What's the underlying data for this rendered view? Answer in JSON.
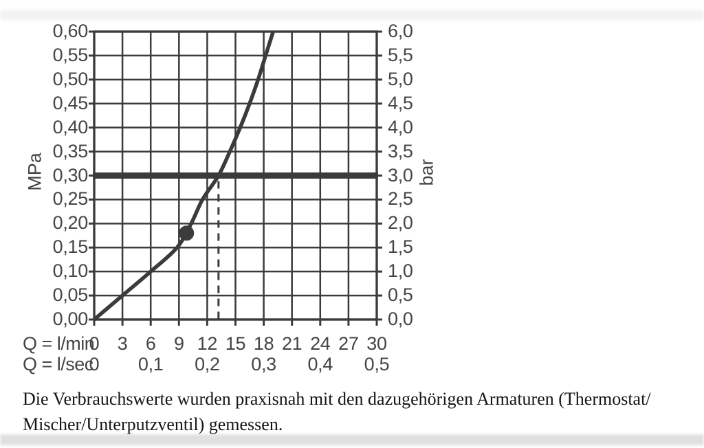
{
  "caption": {
    "line1": "Die Verbrauchswerte wurden praxisnah mit den dazugehörigen Armaturen (Thermostat/",
    "line2": "Mischer/Unterputzventil) gemessen."
  },
  "chart_data": {
    "type": "line",
    "title": "",
    "grid": true,
    "ink_color": "#3b3b3b",
    "label_color": "#454545",
    "x_axis": {
      "xlim_lmin": [
        0,
        30
      ],
      "grid_step_lmin": 3,
      "rows": [
        {
          "label": "Q = l/min",
          "ticks": [
            {
              "q": 0,
              "label": "0"
            },
            {
              "q": 3,
              "label": "3"
            },
            {
              "q": 6,
              "label": "6"
            },
            {
              "q": 9,
              "label": "9"
            },
            {
              "q": 12,
              "label": "12"
            },
            {
              "q": 15,
              "label": "15"
            },
            {
              "q": 18,
              "label": "18"
            },
            {
              "q": 21,
              "label": "21"
            },
            {
              "q": 24,
              "label": "24"
            },
            {
              "q": 27,
              "label": "27"
            },
            {
              "q": 30,
              "label": "30"
            }
          ]
        },
        {
          "label": "Q = l/sec",
          "ticks": [
            {
              "q": 0,
              "label": "0"
            },
            {
              "q": 6,
              "label": "0,1"
            },
            {
              "q": 12,
              "label": "0,2"
            },
            {
              "q": 18,
              "label": "0,3"
            },
            {
              "q": 24,
              "label": "0,4"
            },
            {
              "q": 30,
              "label": "0,5"
            }
          ]
        }
      ]
    },
    "y_axis_left": {
      "label": "MPa",
      "ylim": [
        0,
        0.6
      ],
      "step": 0.05,
      "tick_labels_bottom_to_top": [
        "0,00",
        "0,05",
        "0,10",
        "0,15",
        "0,20",
        "0,25",
        "0,30",
        "0,35",
        "0,40",
        "0,45",
        "0,50",
        "0,55",
        "0,60"
      ]
    },
    "y_axis_right": {
      "label": "bar",
      "ylim": [
        0,
        6.0
      ],
      "step": 0.5,
      "tick_labels_bottom_to_top": [
        "0,0",
        "0,5",
        "1,0",
        "1,5",
        "2,0",
        "2,5",
        "3,0",
        "3,5",
        "4,0",
        "4,5",
        "5,0",
        "5,5",
        "6,0"
      ]
    },
    "series": [
      {
        "name": "flow-pressure-curve",
        "points_lmin_mpa": [
          [
            0,
            0.0
          ],
          [
            3,
            0.05
          ],
          [
            6,
            0.1
          ],
          [
            8.8,
            0.15
          ],
          [
            10.3,
            0.2
          ],
          [
            11.5,
            0.25
          ],
          [
            13.2,
            0.3
          ],
          [
            14.4,
            0.35
          ],
          [
            15.5,
            0.4
          ],
          [
            16.5,
            0.45
          ],
          [
            17.4,
            0.5
          ],
          [
            18.2,
            0.55
          ],
          [
            19.0,
            0.6
          ]
        ]
      }
    ],
    "marker_point_lmin_mpa": [
      9.8,
      0.18
    ],
    "reference_line": {
      "mpa": 0.3,
      "bar": 3.0
    },
    "dashed_drop_line": {
      "at_lmin": 13.2,
      "from_mpa": 0.3,
      "to_mpa": 0
    }
  }
}
